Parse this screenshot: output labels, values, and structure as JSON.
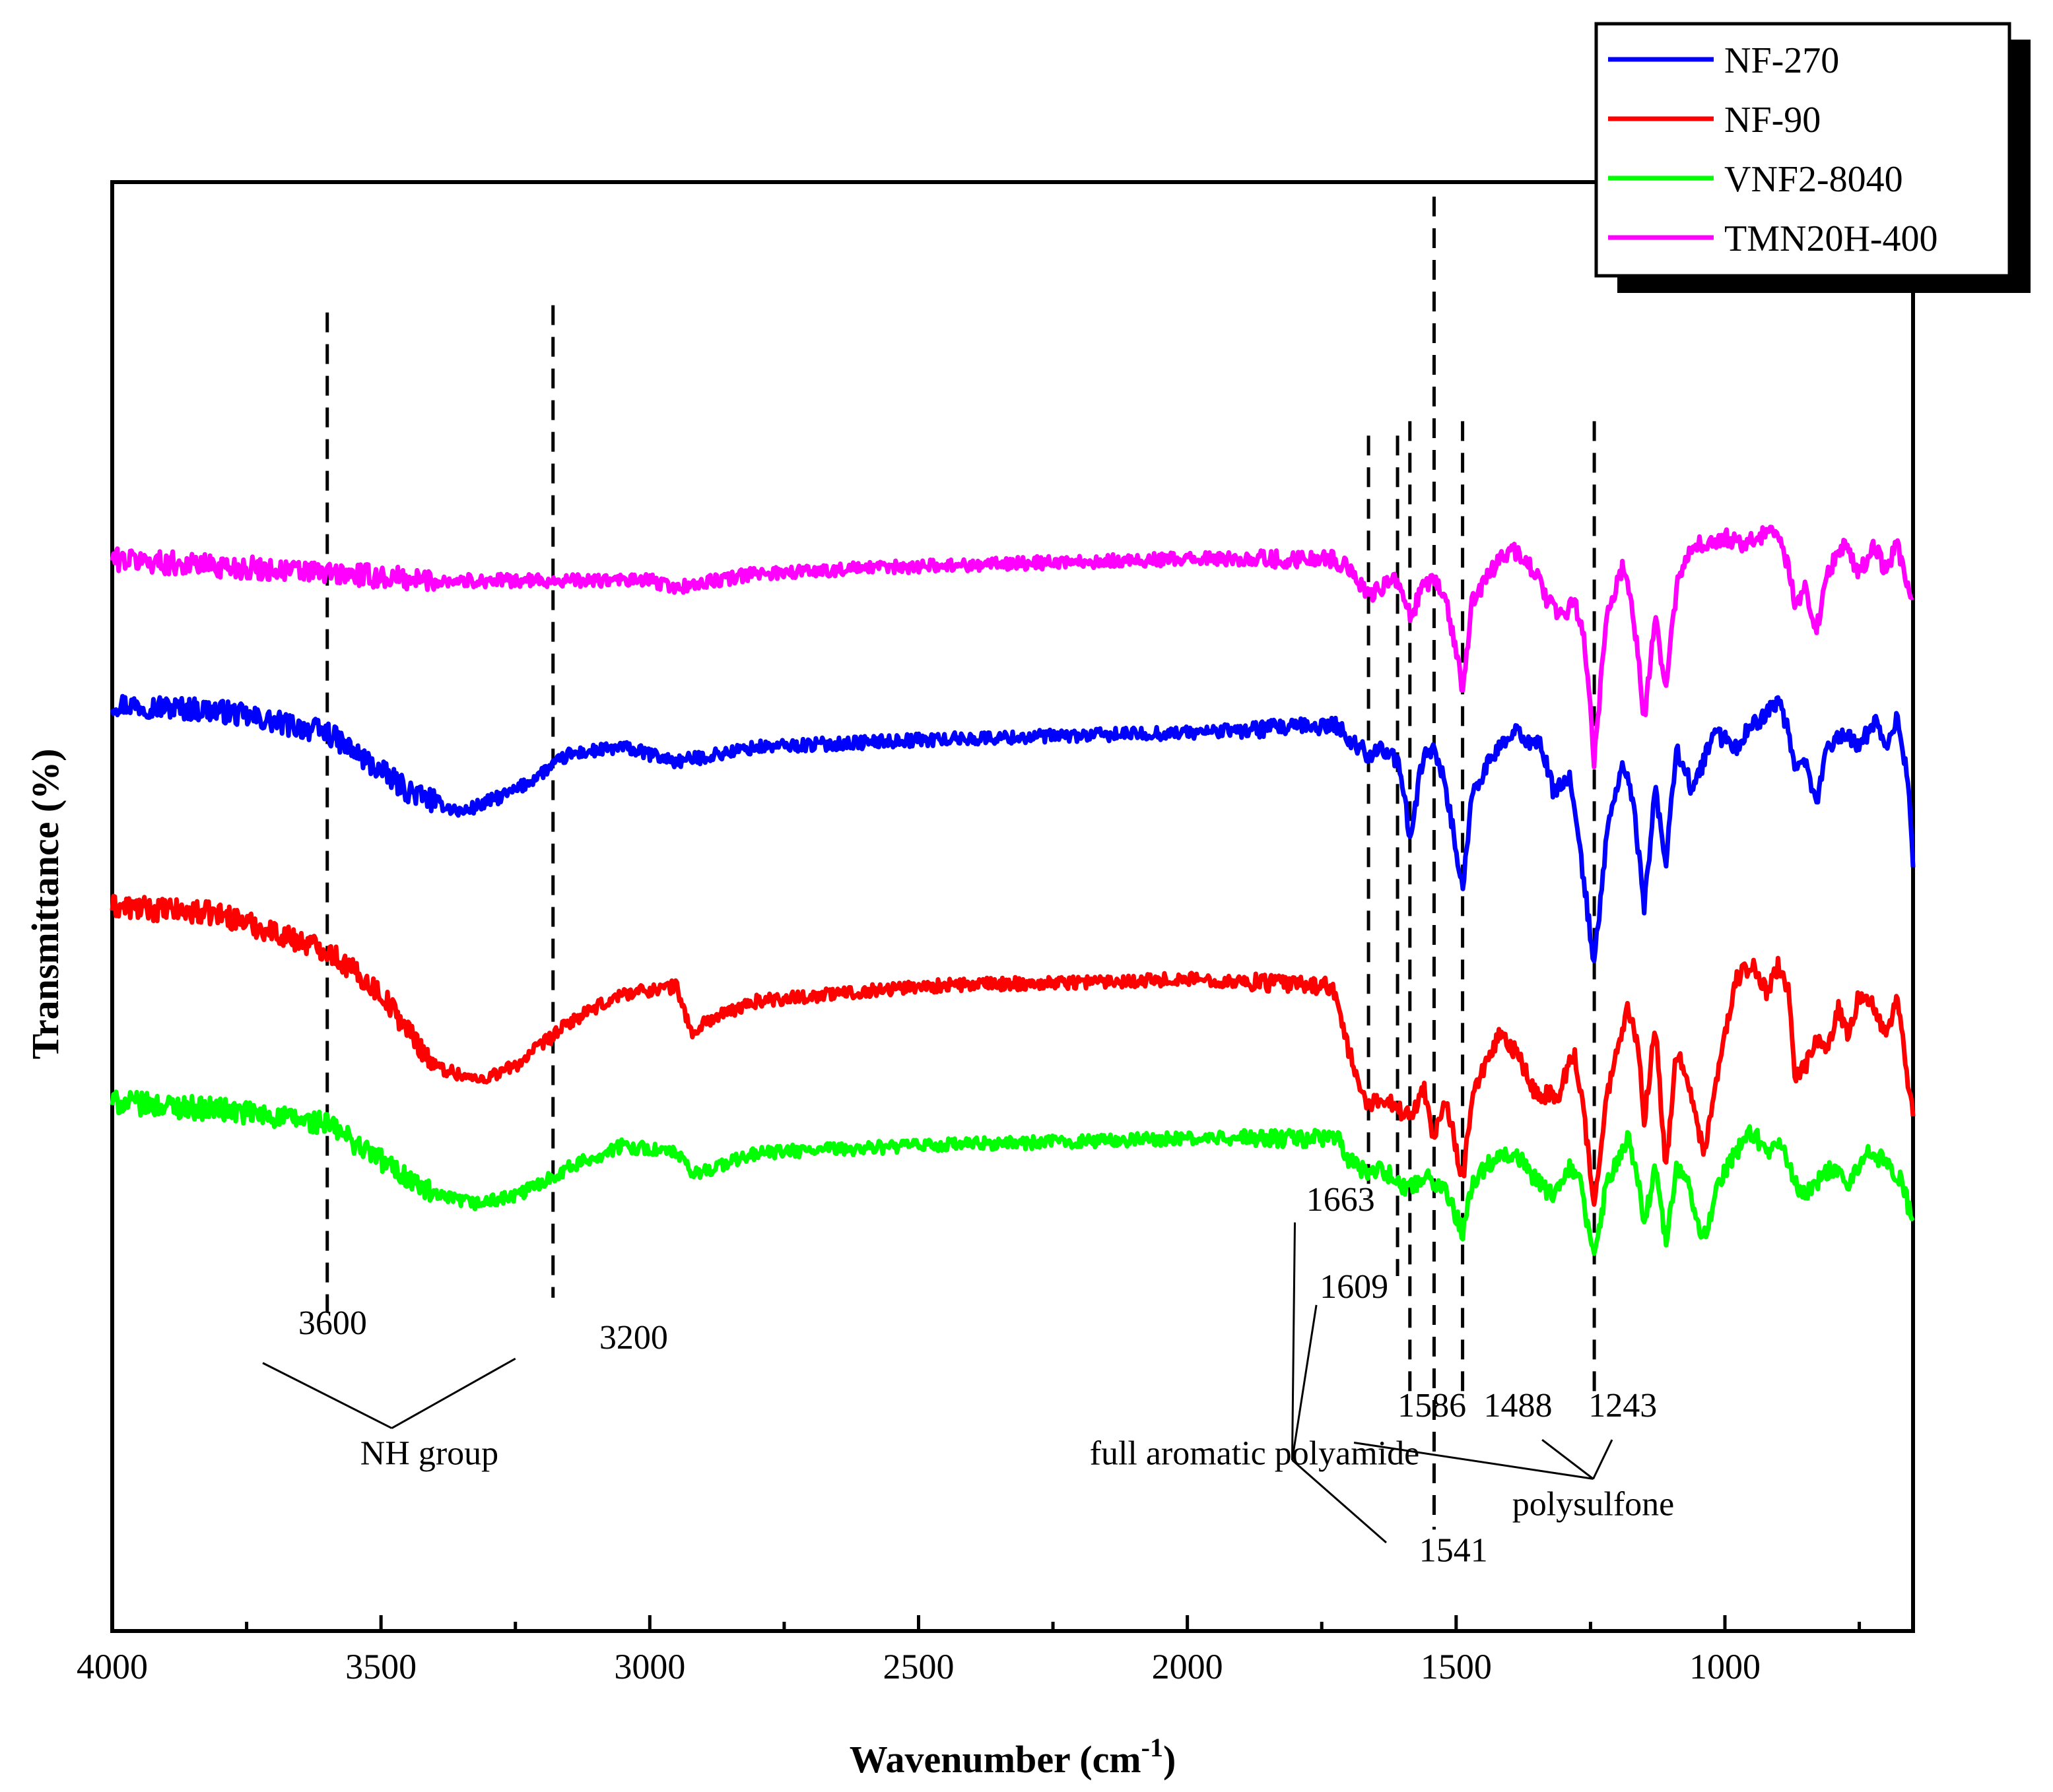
{
  "chart_data": {
    "type": "line",
    "title": "",
    "xlabel": "Wavenumber (cm",
    "xlabel_sup": "-1",
    "xlabel_close": ")",
    "ylabel": "Transmittance (%)",
    "xlim": [
      4000,
      650
    ],
    "x_reversed": true,
    "ylim": [
      0,
      100
    ],
    "y_ticks_shown": false,
    "x_ticks": [
      4000,
      3500,
      3000,
      2500,
      2000,
      1500,
      1000
    ],
    "x_tick_labels": [
      "4000",
      "3500",
      "3000",
      "2500",
      "2000",
      "1500",
      "1000"
    ],
    "legend_position": "top-right",
    "series": [
      {
        "name": "NF-270",
        "color": "#0000ff",
        "baseline": 61,
        "points": [
          [
            4000,
            64
          ],
          [
            3800,
            63.5
          ],
          [
            3600,
            62
          ],
          [
            3450,
            58
          ],
          [
            3350,
            56.5
          ],
          [
            3250,
            58
          ],
          [
            3150,
            60.5
          ],
          [
            3050,
            61
          ],
          [
            2950,
            60
          ],
          [
            2800,
            61
          ],
          [
            2500,
            61.5
          ],
          [
            2000,
            62
          ],
          [
            1720,
            62.5
          ],
          [
            1700,
            61.5
          ],
          [
            1663,
            60.5
          ],
          [
            1640,
            61
          ],
          [
            1609,
            60
          ],
          [
            1586,
            55
          ],
          [
            1560,
            60.5
          ],
          [
            1541,
            61
          ],
          [
            1520,
            58.5
          ],
          [
            1488,
            51
          ],
          [
            1470,
            58
          ],
          [
            1420,
            61
          ],
          [
            1390,
            62
          ],
          [
            1340,
            61
          ],
          [
            1320,
            58
          ],
          [
            1290,
            59
          ],
          [
            1270,
            54
          ],
          [
            1243,
            46
          ],
          [
            1220,
            55
          ],
          [
            1190,
            60
          ],
          [
            1170,
            57
          ],
          [
            1150,
            50
          ],
          [
            1130,
            58
          ],
          [
            1110,
            53
          ],
          [
            1090,
            61
          ],
          [
            1060,
            58
          ],
          [
            1020,
            62
          ],
          [
            980,
            61
          ],
          [
            950,
            62.5
          ],
          [
            900,
            64
          ],
          [
            880,
            62
          ],
          [
            870,
            59
          ],
          [
            850,
            60
          ],
          [
            830,
            57
          ],
          [
            810,
            61
          ],
          [
            780,
            62
          ],
          [
            750,
            61
          ],
          [
            720,
            63
          ],
          [
            700,
            61
          ],
          [
            680,
            63
          ],
          [
            660,
            59
          ],
          [
            650,
            53
          ]
        ]
      },
      {
        "name": "NF-90",
        "color": "#ff0000",
        "baseline": 48,
        "points": [
          [
            4000,
            50
          ],
          [
            3800,
            49.5
          ],
          [
            3600,
            47
          ],
          [
            3500,
            44
          ],
          [
            3400,
            39
          ],
          [
            3320,
            38
          ],
          [
            3250,
            39
          ],
          [
            3150,
            42
          ],
          [
            3050,
            44
          ],
          [
            2950,
            44.5
          ],
          [
            2920,
            41
          ],
          [
            2900,
            42
          ],
          [
            2800,
            43.5
          ],
          [
            2500,
            44.5
          ],
          [
            2000,
            45
          ],
          [
            1730,
            44.5
          ],
          [
            1700,
            40
          ],
          [
            1663,
            36
          ],
          [
            1640,
            37
          ],
          [
            1609,
            36
          ],
          [
            1586,
            35.5
          ],
          [
            1560,
            37.5
          ],
          [
            1541,
            34
          ],
          [
            1520,
            37
          ],
          [
            1488,
            31
          ],
          [
            1470,
            37
          ],
          [
            1420,
            41
          ],
          [
            1390,
            40
          ],
          [
            1350,
            37
          ],
          [
            1310,
            37
          ],
          [
            1280,
            40
          ],
          [
            1260,
            35
          ],
          [
            1243,
            29
          ],
          [
            1220,
            37
          ],
          [
            1180,
            43
          ],
          [
            1160,
            40
          ],
          [
            1150,
            35
          ],
          [
            1130,
            42
          ],
          [
            1110,
            32
          ],
          [
            1090,
            40
          ],
          [
            1070,
            38
          ],
          [
            1040,
            33
          ],
          [
            1010,
            39
          ],
          [
            980,
            45
          ],
          [
            950,
            46
          ],
          [
            920,
            44
          ],
          [
            900,
            46
          ],
          [
            880,
            44
          ],
          [
            870,
            38
          ],
          [
            850,
            39
          ],
          [
            830,
            41
          ],
          [
            810,
            40
          ],
          [
            790,
            43
          ],
          [
            770,
            41
          ],
          [
            750,
            44
          ],
          [
            720,
            43
          ],
          [
            700,
            41
          ],
          [
            680,
            44
          ],
          [
            660,
            38
          ],
          [
            650,
            36
          ]
        ]
      },
      {
        "name": "VNF2-8040",
        "color": "#00ff00",
        "baseline": 36,
        "points": [
          [
            4000,
            36.5
          ],
          [
            3800,
            36
          ],
          [
            3600,
            35
          ],
          [
            3500,
            32.5
          ],
          [
            3400,
            30
          ],
          [
            3320,
            29.5
          ],
          [
            3250,
            30
          ],
          [
            3150,
            32
          ],
          [
            3050,
            33.5
          ],
          [
            2950,
            33
          ],
          [
            2920,
            31.5
          ],
          [
            2800,
            33
          ],
          [
            2500,
            33.5
          ],
          [
            2000,
            34
          ],
          [
            1720,
            34
          ],
          [
            1700,
            32.5
          ],
          [
            1663,
            31.5
          ],
          [
            1640,
            32
          ],
          [
            1609,
            31
          ],
          [
            1586,
            30.5
          ],
          [
            1560,
            31.5
          ],
          [
            1541,
            31
          ],
          [
            1520,
            30.5
          ],
          [
            1488,
            27.5
          ],
          [
            1470,
            31
          ],
          [
            1420,
            33
          ],
          [
            1390,
            33
          ],
          [
            1350,
            31
          ],
          [
            1320,
            30
          ],
          [
            1290,
            32
          ],
          [
            1270,
            31
          ],
          [
            1243,
            25.5
          ],
          [
            1220,
            31
          ],
          [
            1180,
            34
          ],
          [
            1160,
            31
          ],
          [
            1150,
            28
          ],
          [
            1130,
            32
          ],
          [
            1110,
            27
          ],
          [
            1090,
            32
          ],
          [
            1070,
            31
          ],
          [
            1040,
            27
          ],
          [
            1010,
            31
          ],
          [
            980,
            33
          ],
          [
            950,
            34.5
          ],
          [
            920,
            33
          ],
          [
            900,
            34
          ],
          [
            870,
            31
          ],
          [
            850,
            30
          ],
          [
            830,
            31
          ],
          [
            800,
            32
          ],
          [
            770,
            31
          ],
          [
            740,
            33
          ],
          [
            700,
            32.5
          ],
          [
            670,
            31
          ],
          [
            650,
            28
          ]
        ]
      },
      {
        "name": "TMN20H-400",
        "color": "#ff00ff",
        "baseline": 73,
        "points": [
          [
            4000,
            74
          ],
          [
            3800,
            73.5
          ],
          [
            3600,
            73
          ],
          [
            3400,
            72.5
          ],
          [
            3200,
            72.5
          ],
          [
            3000,
            72.5
          ],
          [
            2950,
            72
          ],
          [
            2800,
            73
          ],
          [
            2500,
            73.5
          ],
          [
            2000,
            74
          ],
          [
            1730,
            74
          ],
          [
            1700,
            73.5
          ],
          [
            1663,
            71.5
          ],
          [
            1640,
            72
          ],
          [
            1609,
            72.5
          ],
          [
            1586,
            70
          ],
          [
            1560,
            72
          ],
          [
            1541,
            72.5
          ],
          [
            1520,
            71.5
          ],
          [
            1488,
            65
          ],
          [
            1470,
            71
          ],
          [
            1420,
            74
          ],
          [
            1390,
            74.5
          ],
          [
            1350,
            73
          ],
          [
            1330,
            71
          ],
          [
            1300,
            70
          ],
          [
            1280,
            71
          ],
          [
            1260,
            68
          ],
          [
            1243,
            60
          ],
          [
            1220,
            70
          ],
          [
            1190,
            73.5
          ],
          [
            1170,
            70
          ],
          [
            1150,
            63
          ],
          [
            1130,
            70
          ],
          [
            1110,
            65
          ],
          [
            1090,
            72
          ],
          [
            1060,
            75
          ],
          [
            1030,
            75
          ],
          [
            1000,
            75.5
          ],
          [
            970,
            75
          ],
          [
            940,
            75.5
          ],
          [
            900,
            76
          ],
          [
            880,
            73
          ],
          [
            870,
            71
          ],
          [
            850,
            72
          ],
          [
            830,
            69
          ],
          [
            810,
            73
          ],
          [
            780,
            75
          ],
          [
            750,
            73
          ],
          [
            720,
            75
          ],
          [
            700,
            73
          ],
          [
            680,
            75
          ],
          [
            660,
            72
          ],
          [
            650,
            71
          ]
        ]
      }
    ],
    "reference_lines": [
      {
        "x": 3600,
        "y_top": 91,
        "y_bottom": 22
      },
      {
        "x": 3180,
        "y_top": 91.5,
        "y_bottom": 23
      },
      {
        "x": 1663,
        "y_top": 82.5,
        "y_bottom": 30
      },
      {
        "x": 1609,
        "y_top": 82.5,
        "y_bottom": 24.5
      },
      {
        "x": 1586,
        "y_top": 83.5,
        "y_bottom": 16
      },
      {
        "x": 1541,
        "y_top": 99,
        "y_bottom": 7
      },
      {
        "x": 1488,
        "y_top": 83.5,
        "y_bottom": 16
      },
      {
        "x": 1243,
        "y_top": 83.5,
        "y_bottom": 16
      }
    ],
    "annotations": [
      {
        "label": "3600",
        "x": 3590,
        "y": 20.5
      },
      {
        "label": "3200",
        "x": 3030,
        "y": 19.5
      },
      {
        "label": "NH group",
        "x": 3410,
        "y": 11.5
      },
      {
        "label": "full aromatic polyamide",
        "x": 1875,
        "y": 11.5
      },
      {
        "label": "1663",
        "x": 1715,
        "y": 29
      },
      {
        "label": "1609",
        "x": 1690,
        "y": 23
      },
      {
        "label": "1586",
        "x": 1545,
        "y": 14.8
      },
      {
        "label": "1541",
        "x": 1505,
        "y": 4.8
      },
      {
        "label": "1488",
        "x": 1385,
        "y": 14.8
      },
      {
        "label": "1243",
        "x": 1190,
        "y": 14.8
      },
      {
        "label": "polysulfone",
        "x": 1245,
        "y": 8
      }
    ],
    "leader_lines": [
      {
        "from": [
          3480,
          14
        ],
        "to": [
          3720,
          18.5
        ]
      },
      {
        "from": [
          3480,
          14
        ],
        "to": [
          3250,
          18.8
        ]
      },
      {
        "from": [
          1805,
          11.8
        ],
        "to": [
          1800,
          28.2
        ]
      },
      {
        "from": [
          1805,
          11.8
        ],
        "to": [
          1760,
          22.5
        ]
      },
      {
        "from": [
          1805,
          11.8
        ],
        "to": [
          1630,
          6.1
        ]
      },
      {
        "from": [
          1245,
          10.5
        ],
        "to": [
          1690,
          13
        ]
      },
      {
        "from": [
          1245,
          10.5
        ],
        "to": [
          1340,
          13.2
        ]
      },
      {
        "from": [
          1245,
          10.5
        ],
        "to": [
          1210,
          13.2
        ]
      }
    ]
  }
}
